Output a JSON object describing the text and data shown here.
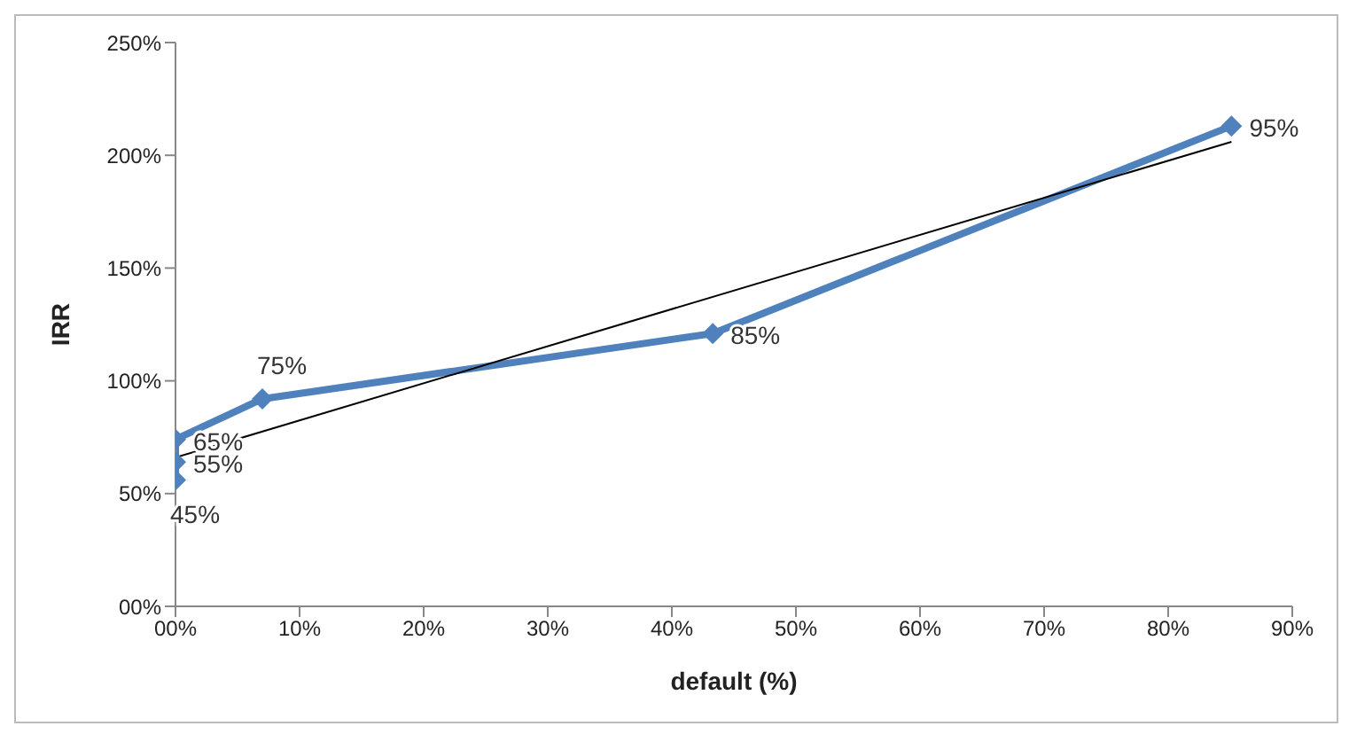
{
  "chart_data": {
    "type": "line",
    "xlabel": "default (%)",
    "ylabel": "IRR",
    "xlim": [
      0,
      90
    ],
    "xticks": [
      {
        "value": 0,
        "label": "00%"
      },
      {
        "value": 10,
        "label": "10%"
      },
      {
        "value": 20,
        "label": "20%"
      },
      {
        "value": 30,
        "label": "30%"
      },
      {
        "value": 40,
        "label": "40%"
      },
      {
        "value": 50,
        "label": "50%"
      },
      {
        "value": 60,
        "label": "60%"
      },
      {
        "value": 70,
        "label": "70%"
      },
      {
        "value": 80,
        "label": "80%"
      },
      {
        "value": 90,
        "label": "90%"
      }
    ],
    "ylim": [
      0,
      250
    ],
    "yticks": [
      {
        "value": 0,
        "label": "00%"
      },
      {
        "value": 50,
        "label": "50%"
      },
      {
        "value": 100,
        "label": "100%"
      },
      {
        "value": 150,
        "label": "150%"
      },
      {
        "value": 200,
        "label": "200%"
      },
      {
        "value": 250,
        "label": "250%"
      }
    ],
    "grid": false,
    "legend": false,
    "series": [
      {
        "color": "#4f81bd",
        "marker": "diamond",
        "x": [
          0,
          0,
          0,
          7,
          43.3,
          85.1
        ],
        "values": [
          56,
          64,
          74,
          92,
          121,
          213
        ]
      },
      {
        "color": "#000000",
        "marker": "none",
        "x": [
          0,
          85.1
        ],
        "values": [
          66,
          206
        ]
      }
    ],
    "annotations": [
      {
        "text": "45%",
        "x": 0,
        "y": 56
      },
      {
        "text": "55%",
        "x": 0,
        "y": 64
      },
      {
        "text": "65%",
        "x": 0,
        "y": 74
      },
      {
        "text": "75%",
        "x": 7,
        "y": 92
      },
      {
        "text": "85%",
        "x": 43.3,
        "y": 121
      },
      {
        "text": "95%",
        "x": 85.1,
        "y": 213
      }
    ]
  }
}
